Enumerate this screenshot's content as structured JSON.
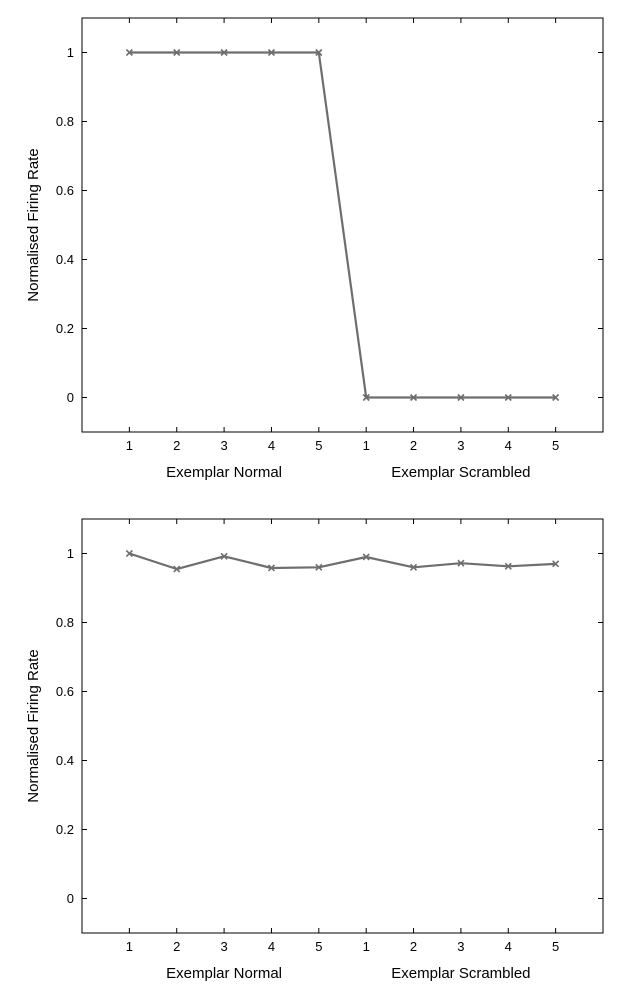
{
  "chart_data": [
    {
      "type": "line",
      "categories": [
        "1",
        "2",
        "3",
        "4",
        "5",
        "1",
        "2",
        "3",
        "4",
        "5"
      ],
      "x": [
        1,
        2,
        3,
        4,
        5,
        6,
        7,
        8,
        9,
        10
      ],
      "series": [
        {
          "values": [
            1,
            1,
            1,
            1,
            1,
            0,
            0,
            0,
            0,
            0
          ],
          "color": "#6e6e6e",
          "marker": "x"
        }
      ],
      "title": "",
      "ylabel": "Normalised Firing Rate",
      "group_labels": [
        "Exemplar Normal",
        "Exemplar Scrambled"
      ],
      "ylim": [
        -0.1,
        1.1
      ],
      "xlim": [
        0,
        11
      ],
      "yticks": [
        0,
        0.2,
        0.4,
        0.6,
        0.8,
        1
      ],
      "ytick_labels": [
        "0",
        "0.2",
        "0.4",
        "0.6",
        "0.8",
        "1"
      ],
      "grid": false,
      "legend": "none"
    },
    {
      "type": "line",
      "categories": [
        "1",
        "2",
        "3",
        "4",
        "5",
        "1",
        "2",
        "3",
        "4",
        "5"
      ],
      "x": [
        1,
        2,
        3,
        4,
        5,
        6,
        7,
        8,
        9,
        10
      ],
      "series": [
        {
          "values": [
            1.0,
            0.955,
            0.992,
            0.958,
            0.96,
            0.99,
            0.96,
            0.972,
            0.963,
            0.97
          ],
          "color": "#6e6e6e",
          "marker": "x"
        }
      ],
      "title": "",
      "ylabel": "Normalised Firing Rate",
      "group_labels": [
        "Exemplar Normal",
        "Exemplar Scrambled"
      ],
      "ylim": [
        -0.1,
        1.1
      ],
      "xlim": [
        0,
        11
      ],
      "yticks": [
        0,
        0.2,
        0.4,
        0.6,
        0.8,
        1
      ],
      "ytick_labels": [
        "0",
        "0.2",
        "0.4",
        "0.6",
        "0.8",
        "1"
      ],
      "grid": false,
      "legend": "none"
    }
  ]
}
